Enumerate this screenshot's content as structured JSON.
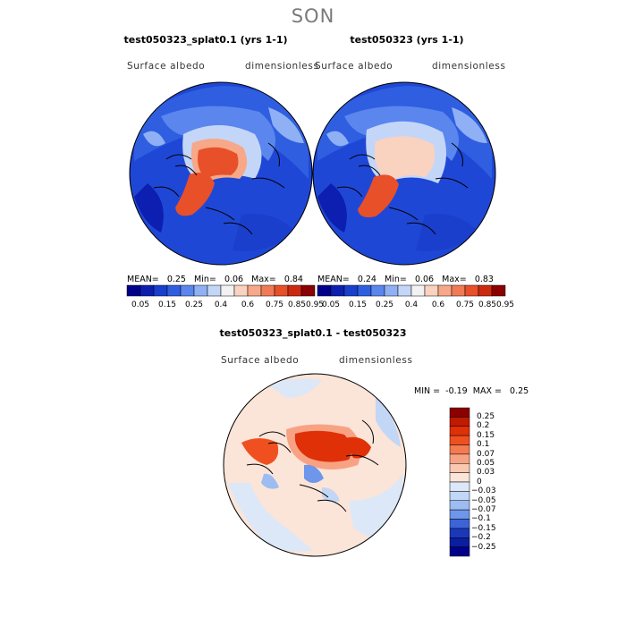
{
  "season": "SON",
  "panels": [
    {
      "title": "test050323_splat0.1 (yrs 1-1)",
      "variable": "Surface albedo",
      "units": "dimensionless",
      "stats": {
        "mean_label": "MEAN=",
        "mean": "0.25",
        "min_label": "Min=",
        "min": "0.06",
        "max_label": "Max=",
        "max": "0.84"
      }
    },
    {
      "title": "test050323 (yrs 1-1)",
      "variable": "Surface albedo",
      "units": "dimensionless",
      "stats": {
        "mean_label": "MEAN=",
        "mean": "0.24",
        "min_label": "Min=",
        "min": "0.06",
        "max_label": "Max=",
        "max": "0.83"
      }
    }
  ],
  "colorbar": {
    "ticks": [
      "0.05",
      "0.15",
      "0.25",
      "0.4",
      "0.6",
      "0.75",
      "0.85",
      "0.95"
    ],
    "colors": [
      "#00008b",
      "#0d1fb0",
      "#1a3fcc",
      "#2f5fe0",
      "#5a86ee",
      "#8fb0f4",
      "#c4d6f8",
      "#f2f2f2",
      "#fad2c0",
      "#f6a888",
      "#f07a55",
      "#e8502a",
      "#cc2a10",
      "#8b0000"
    ]
  },
  "diff_panel": {
    "title": "test050323_splat0.1 - test050323",
    "variable": "Surface albedo",
    "units": "dimensionless",
    "min_label": "MIN =",
    "min": "-0.19",
    "max_label": "MAX =",
    "max": "0.25"
  },
  "diff_colorbar": {
    "ticks": [
      "0.25",
      "0.2",
      "0.15",
      "0.1",
      "0.07",
      "0.05",
      "0.03",
      "0",
      "−0.03",
      "−0.05",
      "−0.07",
      "−0.1",
      "−0.15",
      "−0.2",
      "−0.25"
    ],
    "colors": [
      "#8b0000",
      "#c01a00",
      "#e03008",
      "#f05020",
      "#f47a50",
      "#f8a284",
      "#fac8b0",
      "#fbe4d8",
      "#dce8f8",
      "#c2d6f6",
      "#9cbcf2",
      "#6e96ea",
      "#3c64d8",
      "#1a38b8",
      "#0a1ea0",
      "#00008b"
    ]
  }
}
